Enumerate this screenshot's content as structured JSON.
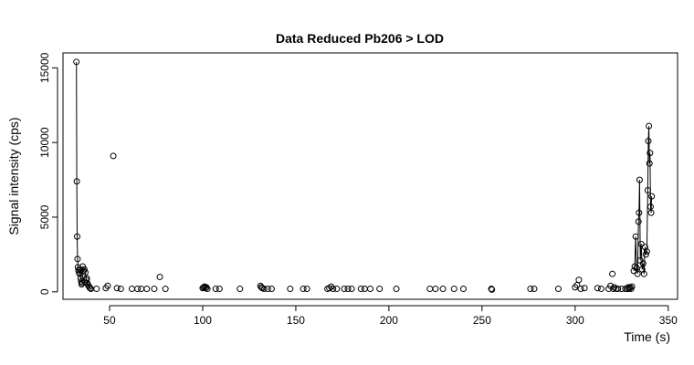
{
  "chart_data": {
    "type": "scatter",
    "title": "Data Reduced Pb206 > LOD",
    "xlabel": "Time (s)",
    "ylabel": "Signal intensity (cps)",
    "xlim": [
      25,
      355
    ],
    "ylim": [
      -500,
      16000
    ],
    "xticks": [
      50,
      100,
      150,
      200,
      250,
      300,
      350
    ],
    "yticks": [
      0,
      5000,
      10000,
      15000
    ],
    "grid": false,
    "legend": "none",
    "point_color": "#000000",
    "line_color": "#000000",
    "points": [
      [
        32.2,
        15400
      ],
      [
        32.4,
        7400
      ],
      [
        32.6,
        3700
      ],
      [
        32.8,
        2200
      ],
      [
        33.0,
        1650
      ],
      [
        33.3,
        1450
      ],
      [
        33.6,
        1300
      ],
      [
        33.9,
        1200
      ],
      [
        34.2,
        1500
      ],
      [
        34.5,
        900
      ],
      [
        34.8,
        700
      ],
      [
        35.2,
        600
      ],
      [
        35.6,
        1700
      ],
      [
        36.0,
        1400
      ],
      [
        36.5,
        1500
      ],
      [
        37.0,
        1300
      ],
      [
        37.5,
        800
      ],
      [
        38.0,
        600
      ],
      [
        38.5,
        450
      ],
      [
        39.0,
        350
      ],
      [
        39.5,
        250
      ],
      [
        40.0,
        200
      ],
      [
        35.0,
        500
      ],
      [
        36.8,
        650
      ],
      [
        37.8,
        900
      ],
      [
        43,
        200
      ],
      [
        48,
        250
      ],
      [
        49,
        400
      ],
      [
        52,
        9100
      ],
      [
        54,
        250
      ],
      [
        56,
        200
      ],
      [
        62,
        200
      ],
      [
        65,
        200
      ],
      [
        67,
        200
      ],
      [
        70,
        200
      ],
      [
        74,
        200
      ],
      [
        77,
        1000
      ],
      [
        80,
        200
      ],
      [
        100,
        250
      ],
      [
        100.5,
        300
      ],
      [
        101,
        350
      ],
      [
        101.5,
        250
      ],
      [
        102,
        300
      ],
      [
        102.5,
        200
      ],
      [
        107,
        200
      ],
      [
        109,
        200
      ],
      [
        120,
        200
      ],
      [
        131,
        400
      ],
      [
        131.5,
        300
      ],
      [
        132,
        250
      ],
      [
        133,
        200
      ],
      [
        135,
        200
      ],
      [
        137,
        200
      ],
      [
        147,
        200
      ],
      [
        154,
        200
      ],
      [
        156,
        200
      ],
      [
        167,
        200
      ],
      [
        168,
        250
      ],
      [
        169,
        350
      ],
      [
        170,
        200
      ],
      [
        172,
        200
      ],
      [
        176,
        200
      ],
      [
        178,
        200
      ],
      [
        180,
        200
      ],
      [
        185,
        200
      ],
      [
        187,
        200
      ],
      [
        190,
        200
      ],
      [
        195,
        200
      ],
      [
        204,
        200
      ],
      [
        222,
        200
      ],
      [
        225,
        200
      ],
      [
        229,
        200
      ],
      [
        235,
        200
      ],
      [
        240,
        200
      ],
      [
        255,
        200
      ],
      [
        255.3,
        150
      ],
      [
        276,
        200
      ],
      [
        278,
        200
      ],
      [
        291,
        200
      ],
      [
        300,
        300
      ],
      [
        301,
        450
      ],
      [
        302,
        800
      ],
      [
        303,
        200
      ],
      [
        305,
        250
      ],
      [
        312,
        250
      ],
      [
        314,
        200
      ],
      [
        318,
        200
      ],
      [
        319,
        400
      ],
      [
        320,
        1200
      ],
      [
        320.5,
        200
      ],
      [
        321,
        300
      ],
      [
        322,
        200
      ],
      [
        323,
        200
      ],
      [
        325,
        200
      ],
      [
        327,
        200
      ],
      [
        328,
        200
      ],
      [
        328.5,
        300
      ],
      [
        329,
        200
      ],
      [
        329.5,
        300
      ],
      [
        330,
        200
      ],
      [
        330.5,
        350
      ],
      [
        331.5,
        1400
      ],
      [
        332,
        1700
      ],
      [
        332.5,
        3700
      ],
      [
        333,
        1600
      ],
      [
        333.5,
        1200
      ],
      [
        334,
        4700
      ],
      [
        334.3,
        5300
      ],
      [
        334.6,
        7500
      ],
      [
        335,
        2100
      ],
      [
        335.5,
        3200
      ],
      [
        336,
        1500
      ],
      [
        336.5,
        1900
      ],
      [
        337,
        1200
      ],
      [
        337.5,
        3000
      ],
      [
        338,
        2500
      ],
      [
        338.5,
        2700
      ],
      [
        339,
        6800
      ],
      [
        339.3,
        10100
      ],
      [
        339.6,
        11100
      ],
      [
        339.9,
        8600
      ],
      [
        340.2,
        9300
      ],
      [
        340.5,
        5700
      ],
      [
        340.8,
        5300
      ],
      [
        341.1,
        6400
      ]
    ],
    "line_x": [
      32.2,
      32.4,
      32.6,
      32.8,
      33.0,
      33.3,
      33.6,
      33.9,
      34.2,
      34.5,
      34.8,
      35.2,
      35.6,
      36.0,
      36.5,
      37.0,
      37.5,
      38.0,
      38.5,
      39.0,
      39.5,
      40.0
    ],
    "line_y": [
      15400,
      7400,
      3700,
      2200,
      1650,
      1450,
      1300,
      1200,
      1500,
      900,
      700,
      600,
      1700,
      1400,
      1500,
      1300,
      800,
      600,
      450,
      350,
      250,
      200
    ],
    "line2_x": [
      331.5,
      332,
      332.5,
      333,
      333.5,
      334,
      334.3,
      334.6,
      335,
      335.5,
      336,
      336.5,
      337,
      337.5,
      338,
      338.5,
      339,
      339.3,
      339.6,
      339.9,
      340.2,
      340.5,
      340.8,
      341.1
    ],
    "line2_y": [
      1400,
      1700,
      3700,
      1600,
      1200,
      4700,
      5300,
      7500,
      2100,
      3200,
      1500,
      1900,
      1200,
      3000,
      2500,
      2700,
      6800,
      10100,
      11100,
      8600,
      9300,
      5700,
      5300,
      6400
    ]
  }
}
